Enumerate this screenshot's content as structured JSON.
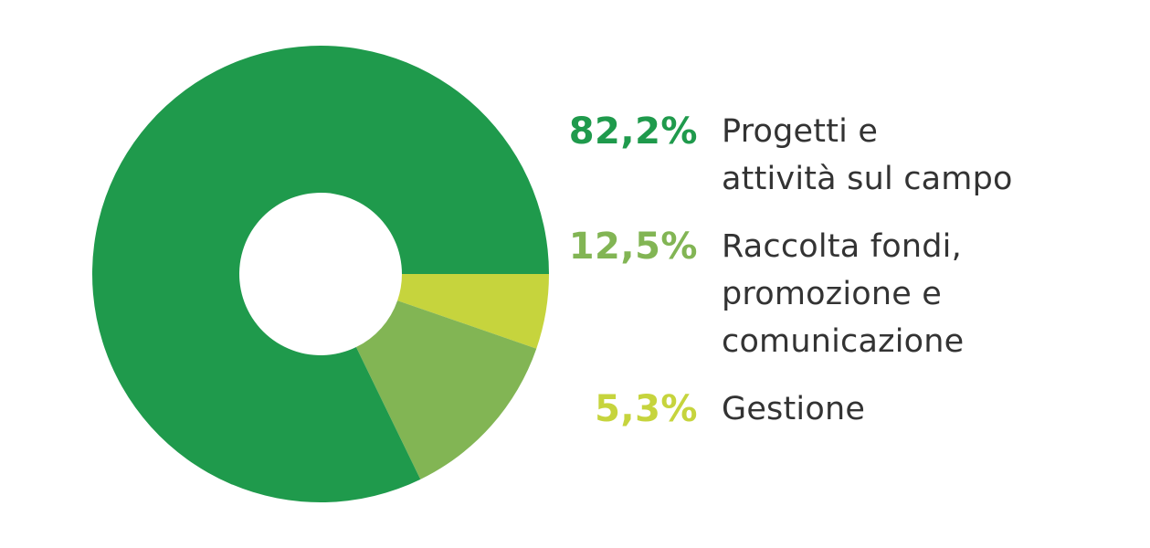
{
  "chart_data": {
    "type": "pie",
    "donut": true,
    "categories": [
      "Progetti e\nattività sul campo",
      "Raccolta fondi,\npromozione e\ncomunicazione",
      "Gestione"
    ],
    "values": [
      82.2,
      12.5,
      5.3
    ],
    "value_labels": [
      "82,2%",
      "12,5%",
      "5,3%"
    ],
    "colors": [
      "#1f9a4c",
      "#82b554",
      "#c6d43d"
    ],
    "legend_position": "right",
    "title": "",
    "xlabel": "",
    "ylabel": ""
  }
}
